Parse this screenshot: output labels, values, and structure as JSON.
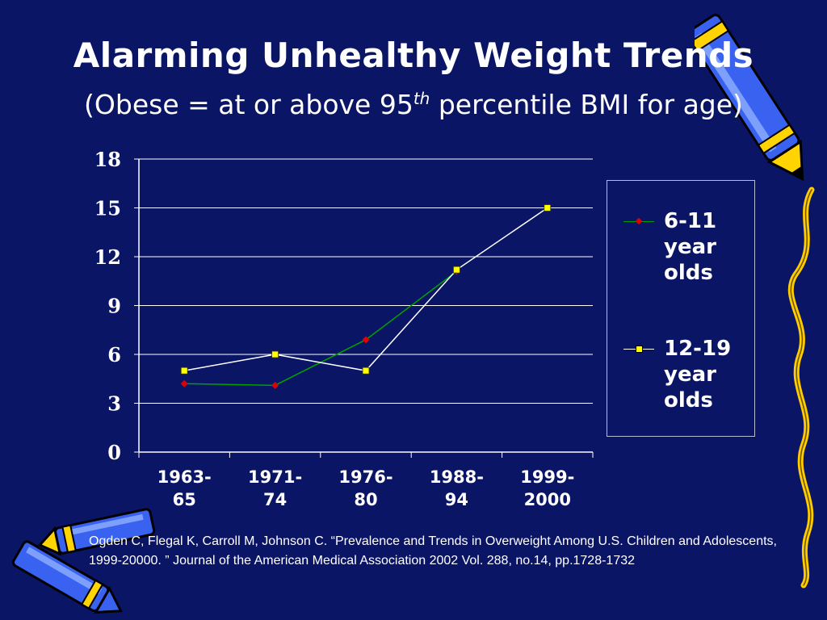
{
  "slide": {
    "title": "Alarming Unhealthy Weight Trends",
    "subtitle_prefix": "(Obese = at or above 95",
    "subtitle_sup": "th",
    "subtitle_suffix": " percentile BMI for age)",
    "citation": "Ogden C, Flegal K, Carroll M, Johnson C. “Prevalence and Trends in Overweight Among U.S. Children and Adolescents, 1999-20000. ” Journal of the American Medical Association 2002 Vol. 288, no.14, pp.1728-1732"
  },
  "chart_data": {
    "type": "line",
    "title": "",
    "xlabel": "",
    "ylabel": "",
    "categories": [
      "1963-65",
      "1971-74",
      "1976-80",
      "1988-94",
      "1999-2000"
    ],
    "category_lines": [
      [
        "1963-",
        "65"
      ],
      [
        "1971-",
        "74"
      ],
      [
        "1976-",
        "80"
      ],
      [
        "1988-",
        "94"
      ],
      [
        "1999-",
        "2000"
      ]
    ],
    "yticks": [
      "0",
      "3",
      "6",
      "9",
      "12",
      "15",
      "18"
    ],
    "ylim": [
      0,
      18
    ],
    "grid": true,
    "legend_position": "right",
    "series": [
      {
        "name": "6-11 year olds",
        "color": "#00a000",
        "marker": "diamond",
        "marker_color": "#e00000",
        "values": [
          4.2,
          4.1,
          6.9,
          11.1,
          null
        ]
      },
      {
        "name": "12-19 year olds",
        "color": "#ffffff",
        "marker": "square",
        "marker_color": "#ffff00",
        "values": [
          5.0,
          6.0,
          5.0,
          11.2,
          15.0
        ]
      }
    ]
  },
  "theme": {
    "background": "#0b1566",
    "text": "#ffffff",
    "gridline": "#ffffff",
    "crayon_body": "#3a62f0",
    "crayon_tip": "#ffd400"
  },
  "decor": {
    "top_right": "crayon-icon",
    "bottom_left": "crayon-icon",
    "right_edge": "squiggle-icon"
  }
}
